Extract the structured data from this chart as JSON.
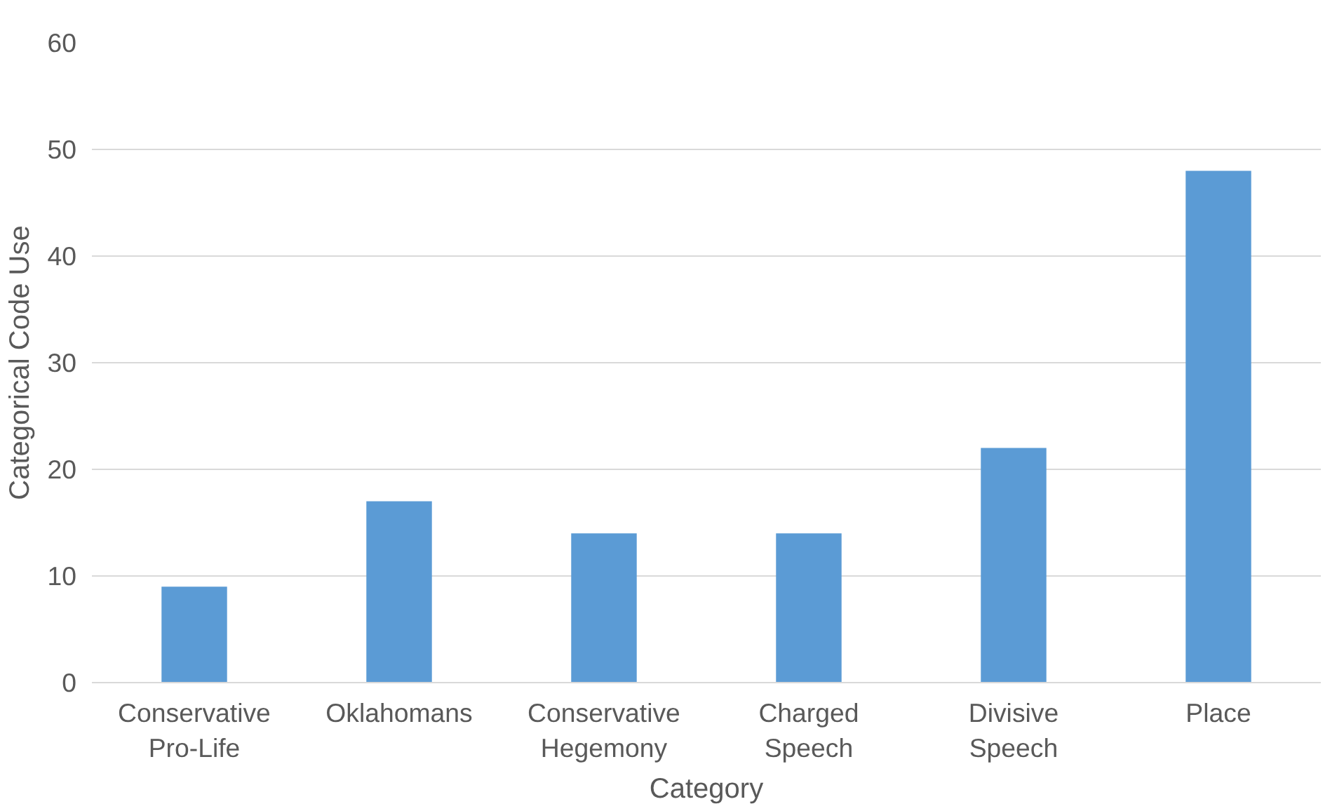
{
  "chart_data": {
    "type": "bar",
    "xlabel": "Category",
    "ylabel": "Categorical Code Use",
    "categories": [
      "Conservative\nPro-Life",
      "Oklahomans",
      "Conservative\nHegemony",
      "Charged\nSpeech",
      "Divisive\nSpeech",
      "Place"
    ],
    "values": [
      9,
      17,
      14,
      14,
      22,
      48
    ],
    "color": "#5b9bd5",
    "ylim": [
      0,
      60
    ],
    "yticks": [
      0,
      10,
      20,
      30,
      40,
      50,
      60
    ],
    "grid": "y"
  }
}
